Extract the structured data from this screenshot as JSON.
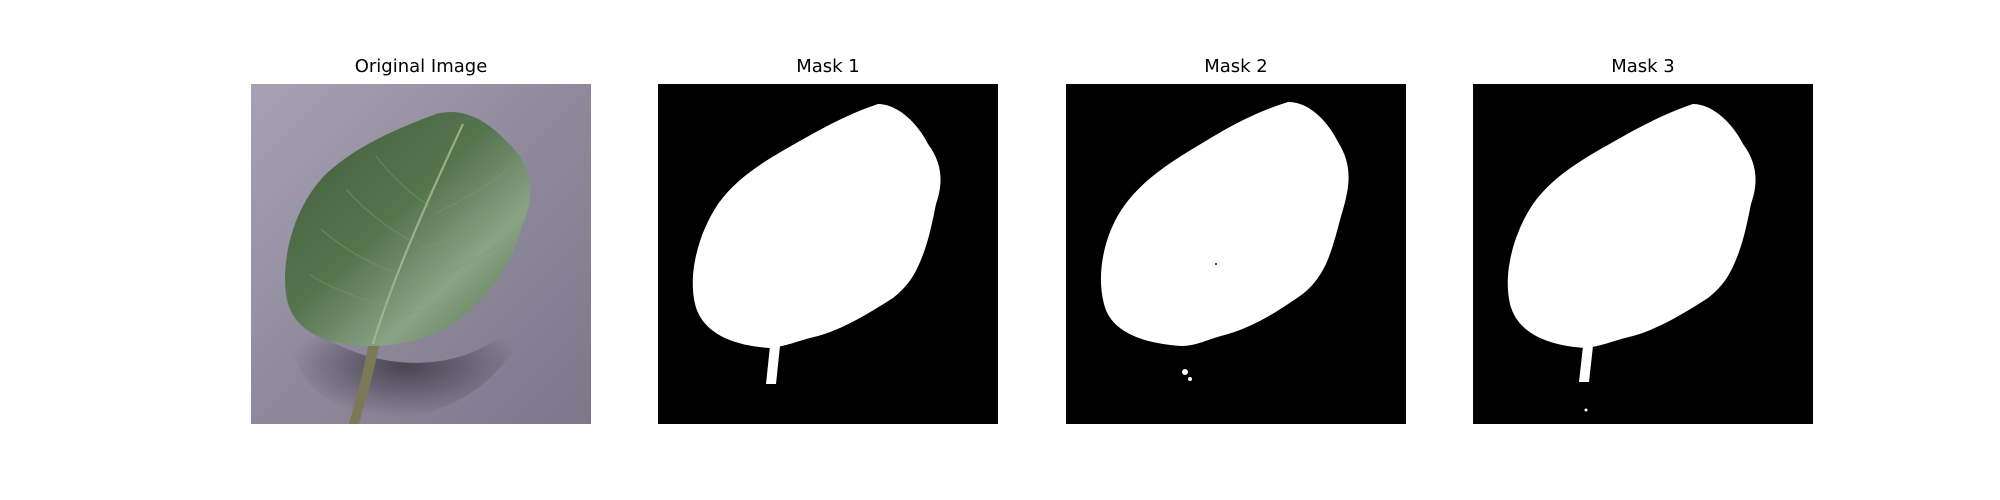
{
  "figure": {
    "panels": [
      {
        "title": "Original Image",
        "kind": "photo",
        "subject": "leaf"
      },
      {
        "title": "Mask 1",
        "kind": "mask"
      },
      {
        "title": "Mask 2",
        "kind": "mask"
      },
      {
        "title": "Mask 3",
        "kind": "mask"
      }
    ]
  },
  "colors": {
    "background": "#ffffff",
    "mask_background": "#000000",
    "mask_foreground": "#ffffff",
    "photo_backdrop": "#8d8799",
    "leaf_dark": "#2f4a2c",
    "leaf_mid": "#4c6d47",
    "leaf_light": "#8aa384",
    "stem": "#7c7a56"
  }
}
